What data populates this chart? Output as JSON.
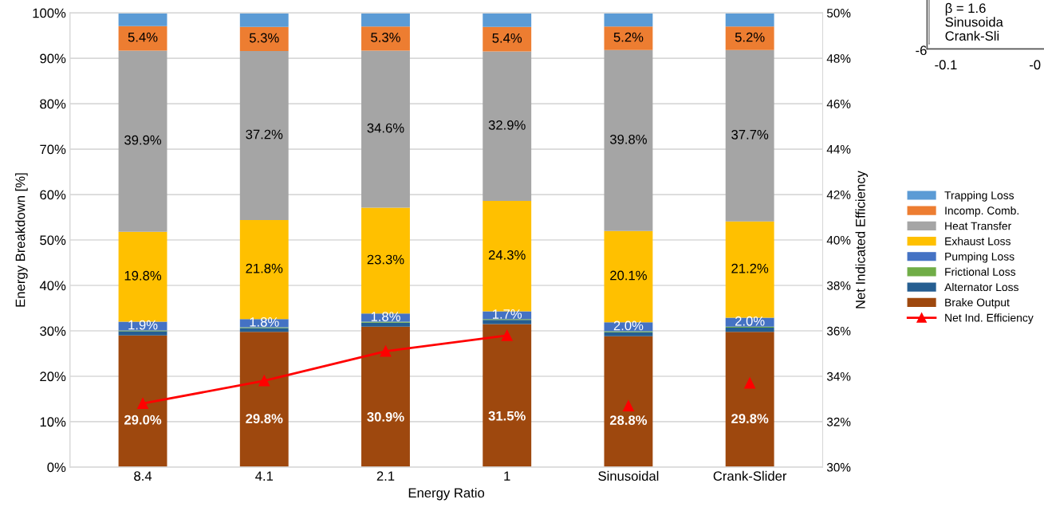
{
  "chart_data": {
    "type": "bar",
    "stacked": true,
    "xlabel": "Energy Ratio",
    "ylabel": "Energy Breakdown [%]",
    "y2label": "Net Indicated Efficiency",
    "categories": [
      "8.4",
      "4.1",
      "2.1",
      "1",
      "Sinusoidal",
      "Crank-Slider"
    ],
    "series": [
      {
        "name": "Brake Output",
        "color": "#9e480e",
        "values": [
          29.0,
          29.8,
          30.9,
          31.5,
          28.8,
          29.8
        ],
        "value_labels": [
          "29.0%",
          "29.8%",
          "30.9%",
          "31.5%",
          "28.8%",
          "29.8%"
        ]
      },
      {
        "name": "Alternator Loss",
        "color": "#255e91",
        "values": [
          0.9,
          0.8,
          0.9,
          0.9,
          0.9,
          0.9
        ]
      },
      {
        "name": "Frictional Loss",
        "color": "#70ad47",
        "values": [
          0.2,
          0.2,
          0.2,
          0.2,
          0.2,
          0.2
        ]
      },
      {
        "name": "Pumping Loss",
        "color": "#4472c4",
        "values": [
          1.9,
          1.8,
          1.8,
          1.7,
          2.0,
          2.0
        ],
        "value_labels": [
          "1.9%",
          "1.8%",
          "1.8%",
          "1.7%",
          "2.0%",
          "2.0%"
        ]
      },
      {
        "name": "Exhaust Loss",
        "color": "#ffc000",
        "values": [
          19.8,
          21.8,
          23.3,
          24.3,
          20.1,
          21.2
        ],
        "value_labels": [
          "19.8%",
          "21.8%",
          "23.3%",
          "24.3%",
          "20.1%",
          "21.2%"
        ]
      },
      {
        "name": "Heat Transfer",
        "color": "#a5a5a5",
        "values": [
          39.9,
          37.2,
          34.6,
          32.9,
          39.8,
          37.7
        ],
        "value_labels": [
          "39.9%",
          "37.2%",
          "34.6%",
          "32.9%",
          "39.8%",
          "37.7%"
        ]
      },
      {
        "name": "Incomp. Comb.",
        "color": "#ed7d31",
        "values": [
          5.4,
          5.3,
          5.3,
          5.4,
          5.2,
          5.2
        ],
        "value_labels": [
          "5.4%",
          "5.3%",
          "5.3%",
          "5.4%",
          "5.2%",
          "5.2%"
        ]
      },
      {
        "name": "Trapping Loss",
        "color": "#5b9bd5",
        "values": [
          2.9,
          3.1,
          3.0,
          3.1,
          3.0,
          3.0
        ]
      },
      {
        "name": "Net Ind. Efficiency",
        "type": "line",
        "axis": "y2",
        "color": "#ff0000",
        "marker": "triangle",
        "values": [
          32.8,
          33.8,
          35.1,
          35.8,
          null,
          null
        ]
      },
      {
        "type": "scatter",
        "axis": "y2",
        "color": "#ff0000",
        "marker": "triangle",
        "values": [
          null,
          null,
          null,
          null,
          32.7,
          33.7
        ]
      }
    ],
    "ylim": [
      0,
      100
    ],
    "yticks": [
      {
        "value": 0,
        "label": "0%"
      },
      {
        "value": 10,
        "label": "10%"
      },
      {
        "value": 20,
        "label": "20%"
      },
      {
        "value": 30,
        "label": "30%"
      },
      {
        "value": 40,
        "label": "40%"
      },
      {
        "value": 50,
        "label": "50%"
      },
      {
        "value": 60,
        "label": "60%"
      },
      {
        "value": 70,
        "label": "70%"
      },
      {
        "value": 80,
        "label": "80%"
      },
      {
        "value": 90,
        "label": "90%"
      },
      {
        "value": 100,
        "label": "100%"
      }
    ],
    "y2lim": [
      30,
      50
    ],
    "y2ticks": [
      {
        "value": 30,
        "label": "30%"
      },
      {
        "value": 32,
        "label": "32%"
      },
      {
        "value": 34,
        "label": "34%"
      },
      {
        "value": 36,
        "label": "36%"
      },
      {
        "value": 38,
        "label": "38%"
      },
      {
        "value": 40,
        "label": "40%"
      },
      {
        "value": 42,
        "label": "42%"
      },
      {
        "value": 44,
        "label": "44%"
      },
      {
        "value": 46,
        "label": "46%"
      },
      {
        "value": 48,
        "label": "48%"
      },
      {
        "value": 50,
        "label": "50%"
      }
    ],
    "grid": "y",
    "legend": "right",
    "annotations": [
      "β = 1.6",
      "Sinusoida",
      "Crank-Sli",
      "-6",
      "-0.1",
      "-0"
    ]
  }
}
